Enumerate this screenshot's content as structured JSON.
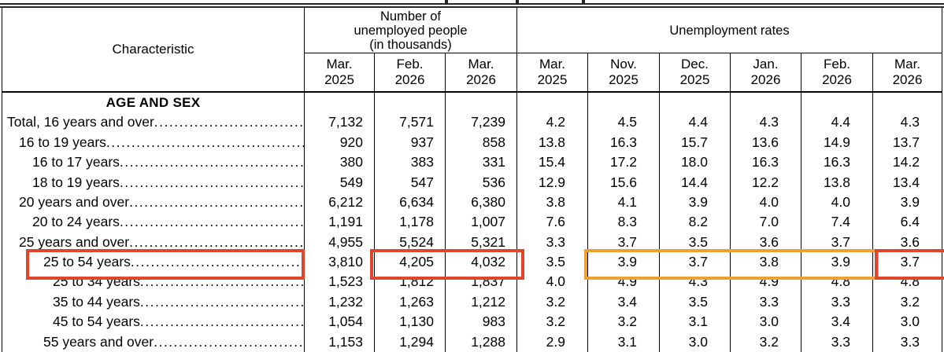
{
  "header": {
    "characteristic": "Characteristic",
    "groups": [
      {
        "title_lines": [
          "Number of",
          "unemployed people",
          "(in thousands)"
        ],
        "columns": [
          {
            "m": "Mar.",
            "y": "2025"
          },
          {
            "m": "Feb.",
            "y": "2026"
          },
          {
            "m": "Mar.",
            "y": "2026"
          }
        ]
      },
      {
        "title_lines": [
          "Unemployment rates"
        ],
        "columns": [
          {
            "m": "Mar.",
            "y": "2025"
          },
          {
            "m": "Nov.",
            "y": "2025"
          },
          {
            "m": "Dec.",
            "y": "2025"
          },
          {
            "m": "Jan.",
            "y": "2026"
          },
          {
            "m": "Feb.",
            "y": "2026"
          },
          {
            "m": "Mar.",
            "y": "2026"
          }
        ]
      }
    ]
  },
  "rows": [
    {
      "type": "section",
      "label": "AGE AND SEX"
    },
    {
      "label": "Total, 16 years and over",
      "indent": 0,
      "unemployed": [
        "7,132",
        "7,571",
        "7,239"
      ],
      "rates": [
        "4.2",
        "4.5",
        "4.4",
        "4.3",
        "4.4",
        "4.3"
      ]
    },
    {
      "label": "16 to 19 years",
      "indent": 1,
      "unemployed": [
        "920",
        "937",
        "858"
      ],
      "rates": [
        "13.8",
        "16.3",
        "15.7",
        "13.6",
        "14.9",
        "13.7"
      ]
    },
    {
      "label": "16 to 17 years",
      "indent": 2,
      "unemployed": [
        "380",
        "383",
        "331"
      ],
      "rates": [
        "15.4",
        "17.2",
        "18.0",
        "16.3",
        "16.3",
        "14.2"
      ]
    },
    {
      "label": "18 to 19 years",
      "indent": 2,
      "unemployed": [
        "549",
        "547",
        "536"
      ],
      "rates": [
        "12.9",
        "15.6",
        "14.4",
        "12.2",
        "13.8",
        "13.4"
      ]
    },
    {
      "label": "20 years and over",
      "indent": 1,
      "unemployed": [
        "6,212",
        "6,634",
        "6,380"
      ],
      "rates": [
        "3.8",
        "4.1",
        "3.9",
        "4.0",
        "4.0",
        "3.9"
      ]
    },
    {
      "label": "20 to 24 years",
      "indent": 2,
      "unemployed": [
        "1,191",
        "1,178",
        "1,007"
      ],
      "rates": [
        "7.6",
        "8.3",
        "8.2",
        "7.0",
        "7.4",
        "6.4"
      ]
    },
    {
      "label": "25 years and over",
      "indent": 1,
      "unemployed": [
        "4,955",
        "5,524",
        "5,321"
      ],
      "rates": [
        "3.3",
        "3.7",
        "3.5",
        "3.6",
        "3.7",
        "3.6"
      ]
    },
    {
      "label": "25 to 54 years",
      "indent": 3,
      "highlighted": true,
      "unemployed": [
        "3,810",
        "4,205",
        "4,032"
      ],
      "rates": [
        "3.5",
        "3.9",
        "3.7",
        "3.8",
        "3.9",
        "3.7"
      ]
    },
    {
      "label": "25 to 34 years",
      "indent": 4,
      "unemployed": [
        "1,523",
        "1,812",
        "1,837"
      ],
      "rates": [
        "4.0",
        "4.9",
        "4.3",
        "4.9",
        "4.8",
        "4.8"
      ]
    },
    {
      "label": "35 to 44 years",
      "indent": 4,
      "unemployed": [
        "1,232",
        "1,263",
        "1,212"
      ],
      "rates": [
        "3.2",
        "3.4",
        "3.5",
        "3.3",
        "3.3",
        "3.2"
      ]
    },
    {
      "label": "45 to 54 years",
      "indent": 4,
      "unemployed": [
        "1,054",
        "1,130",
        "983"
      ],
      "rates": [
        "3.2",
        "3.2",
        "3.1",
        "3.0",
        "3.4",
        "3.0"
      ]
    },
    {
      "label": "55 years and over",
      "indent": 3,
      "unemployed": [
        "1,153",
        "1,294",
        "1,288"
      ],
      "rates": [
        "2.9",
        "3.1",
        "3.0",
        "3.2",
        "3.3",
        "3.3"
      ]
    }
  ],
  "highlights": [
    {
      "id": "label-box",
      "color": "#e0462c"
    },
    {
      "id": "unemployed-feb-mar-box",
      "color": "#e0462c"
    },
    {
      "id": "rates-nov-feb-box",
      "color": "#eea032"
    },
    {
      "id": "rate-mar2026-box",
      "color": "#e0462c"
    }
  ]
}
